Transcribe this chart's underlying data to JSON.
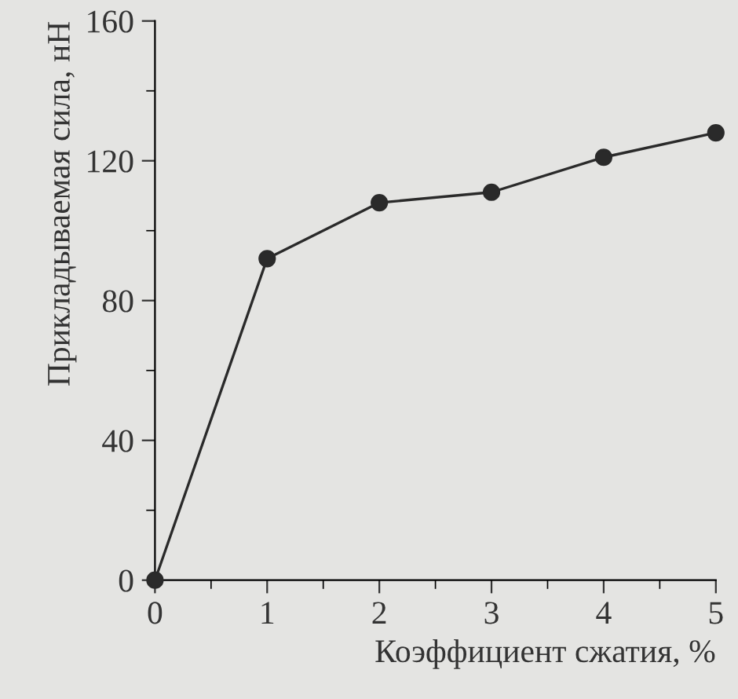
{
  "chart_data": {
    "type": "line",
    "xlabel": "Коэффициент сжатия, %",
    "ylabel": "Прикладываемая сила, нН",
    "x": [
      0,
      1,
      2,
      3,
      4,
      5
    ],
    "series": [
      {
        "color": "#2a2a2a",
        "values": [
          0,
          92,
          108,
          111,
          121,
          128
        ]
      }
    ],
    "xlim": [
      0,
      5
    ],
    "xticks": [
      0,
      1,
      2,
      3,
      4,
      5
    ],
    "ylim": [
      0,
      160
    ],
    "yticks": [
      0,
      40,
      80,
      120,
      160
    ],
    "marker": "circle",
    "line_style": "solid",
    "grid": false,
    "legend": false
  }
}
